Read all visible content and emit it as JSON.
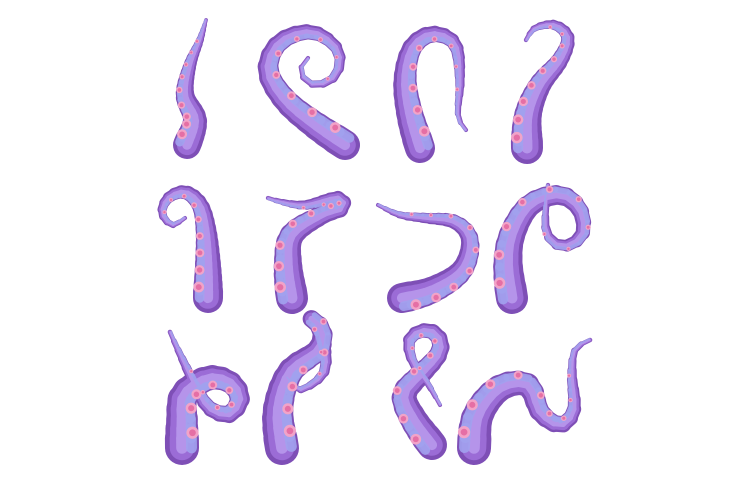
{
  "image": {
    "background_color": "#ffffff",
    "subject": "tentacle",
    "grid": {
      "rows": 3,
      "columns": 4
    }
  },
  "colors": {
    "tentacle_dark": "#7e4fb6",
    "tentacle_base": "#9b6cd6",
    "tentacle_light": "#b594ea",
    "inner_side": "#a2a2ef",
    "sucker_outer": "#f2a3c8",
    "sucker_inner": "#e56fa5"
  },
  "tentacles": [
    {
      "icon": "tentacle-icon",
      "pose": "wavy-up"
    },
    {
      "icon": "tentacle-icon",
      "pose": "spiral"
    },
    {
      "icon": "tentacle-icon",
      "pose": "arch-hook"
    },
    {
      "icon": "tentacle-icon",
      "pose": "curl-top"
    },
    {
      "icon": "tentacle-icon",
      "pose": "curl-left"
    },
    {
      "icon": "tentacle-icon",
      "pose": "s-curve"
    },
    {
      "icon": "tentacle-icon",
      "pose": "zigzag-horizontal"
    },
    {
      "icon": "tentacle-icon",
      "pose": "loop-right"
    },
    {
      "icon": "tentacle-icon",
      "pose": "coil-side"
    },
    {
      "icon": "tentacle-icon",
      "pose": "crossing"
    },
    {
      "icon": "tentacle-icon",
      "pose": "loop-knot"
    },
    {
      "icon": "tentacle-icon",
      "pose": "wave-horizontal"
    }
  ]
}
